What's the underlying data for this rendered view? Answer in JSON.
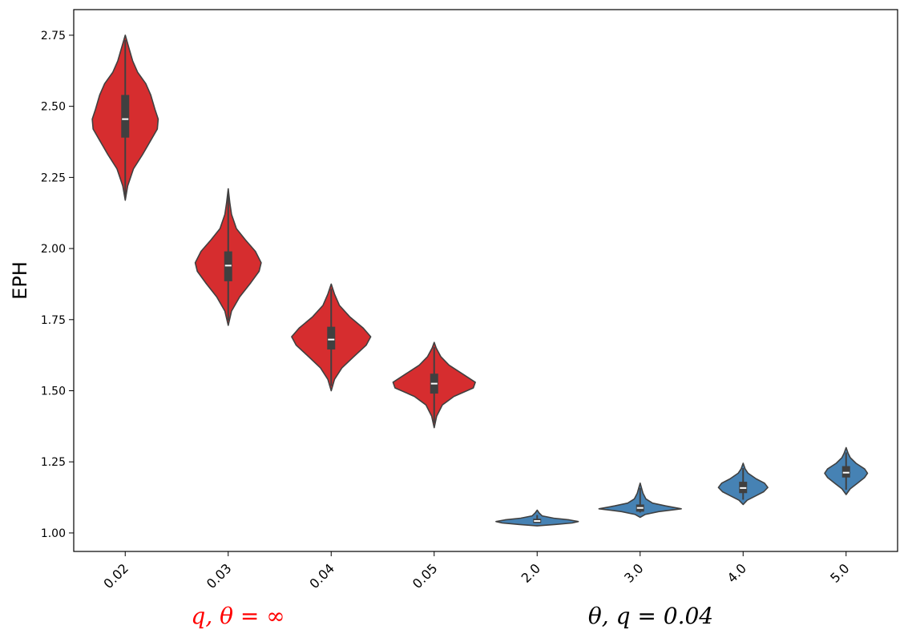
{
  "chart_data": {
    "type": "violin",
    "ylabel": "EPH",
    "ylim": [
      0.935,
      2.84
    ],
    "yticks": [
      "1.00",
      "1.25",
      "1.50",
      "1.75",
      "2.00",
      "2.25",
      "2.50",
      "2.75"
    ],
    "ytick_values": [
      1.0,
      1.25,
      1.5,
      1.75,
      2.0,
      2.25,
      2.5,
      2.75
    ],
    "grid": false,
    "groups": [
      {
        "label": "q, θ = ∞",
        "color": "#ff0000"
      },
      {
        "label": "θ, q = 0.04",
        "color": "#000000"
      }
    ],
    "categories": [
      "0.02",
      "0.03",
      "0.04",
      "0.05",
      "2.0",
      "3.0",
      "4.0",
      "5.0"
    ],
    "tick_colors": [
      "#ff0000",
      "#ff0000",
      "#ff0000",
      "#ff0000",
      "#000000",
      "#000000",
      "#000000",
      "#000000"
    ],
    "violin_colors": [
      "#d62d2f",
      "#d62d2f",
      "#d62d2f",
      "#d62d2f",
      "#4682b4",
      "#4682b4",
      "#4682b4",
      "#4682b4"
    ],
    "series": [
      {
        "category": "0.02",
        "min": 2.17,
        "q1": 2.39,
        "median": 2.455,
        "q3": 2.54,
        "max": 2.75,
        "density": [
          [
            2.17,
            0.0
          ],
          [
            2.22,
            0.06
          ],
          [
            2.28,
            0.2
          ],
          [
            2.33,
            0.42
          ],
          [
            2.38,
            0.62
          ],
          [
            2.42,
            0.78
          ],
          [
            2.455,
            0.8
          ],
          [
            2.49,
            0.72
          ],
          [
            2.54,
            0.62
          ],
          [
            2.58,
            0.5
          ],
          [
            2.62,
            0.3
          ],
          [
            2.66,
            0.18
          ],
          [
            2.7,
            0.1
          ],
          [
            2.75,
            0.0
          ]
        ]
      },
      {
        "category": "0.03",
        "min": 1.73,
        "q1": 1.885,
        "median": 1.94,
        "q3": 1.99,
        "max": 2.21,
        "density": [
          [
            1.73,
            0.0
          ],
          [
            1.78,
            0.08
          ],
          [
            1.83,
            0.28
          ],
          [
            1.88,
            0.55
          ],
          [
            1.92,
            0.75
          ],
          [
            1.95,
            0.8
          ],
          [
            1.99,
            0.66
          ],
          [
            2.03,
            0.42
          ],
          [
            2.07,
            0.2
          ],
          [
            2.12,
            0.08
          ],
          [
            2.16,
            0.04
          ],
          [
            2.21,
            0.0
          ]
        ]
      },
      {
        "category": "0.04",
        "min": 1.5,
        "q1": 1.645,
        "median": 1.68,
        "q3": 1.725,
        "max": 1.875,
        "density": [
          [
            1.5,
            0.0
          ],
          [
            1.54,
            0.08
          ],
          [
            1.58,
            0.26
          ],
          [
            1.62,
            0.55
          ],
          [
            1.66,
            0.85
          ],
          [
            1.69,
            0.96
          ],
          [
            1.72,
            0.78
          ],
          [
            1.76,
            0.45
          ],
          [
            1.8,
            0.2
          ],
          [
            1.84,
            0.08
          ],
          [
            1.875,
            0.0
          ]
        ]
      },
      {
        "category": "0.05",
        "min": 1.37,
        "q1": 1.49,
        "median": 1.525,
        "q3": 1.56,
        "max": 1.67,
        "density": [
          [
            1.37,
            0.0
          ],
          [
            1.41,
            0.06
          ],
          [
            1.45,
            0.2
          ],
          [
            1.48,
            0.48
          ],
          [
            1.51,
            0.95
          ],
          [
            1.53,
            1.0
          ],
          [
            1.56,
            0.68
          ],
          [
            1.59,
            0.36
          ],
          [
            1.62,
            0.16
          ],
          [
            1.65,
            0.05
          ],
          [
            1.67,
            0.0
          ]
        ]
      },
      {
        "category": "2.0",
        "min": 1.025,
        "q1": 1.035,
        "median": 1.042,
        "q3": 1.05,
        "max": 1.08,
        "density": [
          [
            1.025,
            0.0
          ],
          [
            1.03,
            0.45
          ],
          [
            1.035,
            0.85
          ],
          [
            1.04,
            1.0
          ],
          [
            1.046,
            0.78
          ],
          [
            1.052,
            0.4
          ],
          [
            1.06,
            0.12
          ],
          [
            1.07,
            0.05
          ],
          [
            1.08,
            0.0
          ]
        ]
      },
      {
        "category": "3.0",
        "min": 1.055,
        "q1": 1.075,
        "median": 1.088,
        "q3": 1.1,
        "max": 1.175,
        "density": [
          [
            1.055,
            0.0
          ],
          [
            1.065,
            0.12
          ],
          [
            1.075,
            0.45
          ],
          [
            1.085,
            1.0
          ],
          [
            1.095,
            0.62
          ],
          [
            1.105,
            0.3
          ],
          [
            1.12,
            0.14
          ],
          [
            1.14,
            0.07
          ],
          [
            1.16,
            0.03
          ],
          [
            1.175,
            0.0
          ]
        ]
      },
      {
        "category": "4.0",
        "min": 1.1,
        "q1": 1.14,
        "median": 1.158,
        "q3": 1.18,
        "max": 1.245,
        "density": [
          [
            1.1,
            0.0
          ],
          [
            1.115,
            0.1
          ],
          [
            1.13,
            0.3
          ],
          [
            1.145,
            0.5
          ],
          [
            1.16,
            0.6
          ],
          [
            1.175,
            0.52
          ],
          [
            1.19,
            0.32
          ],
          [
            1.21,
            0.12
          ],
          [
            1.225,
            0.05
          ],
          [
            1.245,
            0.0
          ]
        ]
      },
      {
        "category": "5.0",
        "min": 1.135,
        "q1": 1.195,
        "median": 1.212,
        "q3": 1.235,
        "max": 1.3,
        "density": [
          [
            1.135,
            0.0
          ],
          [
            1.155,
            0.1
          ],
          [
            1.175,
            0.28
          ],
          [
            1.195,
            0.45
          ],
          [
            1.21,
            0.52
          ],
          [
            1.225,
            0.45
          ],
          [
            1.245,
            0.24
          ],
          [
            1.265,
            0.1
          ],
          [
            1.28,
            0.05
          ],
          [
            1.3,
            0.0
          ]
        ]
      }
    ]
  }
}
